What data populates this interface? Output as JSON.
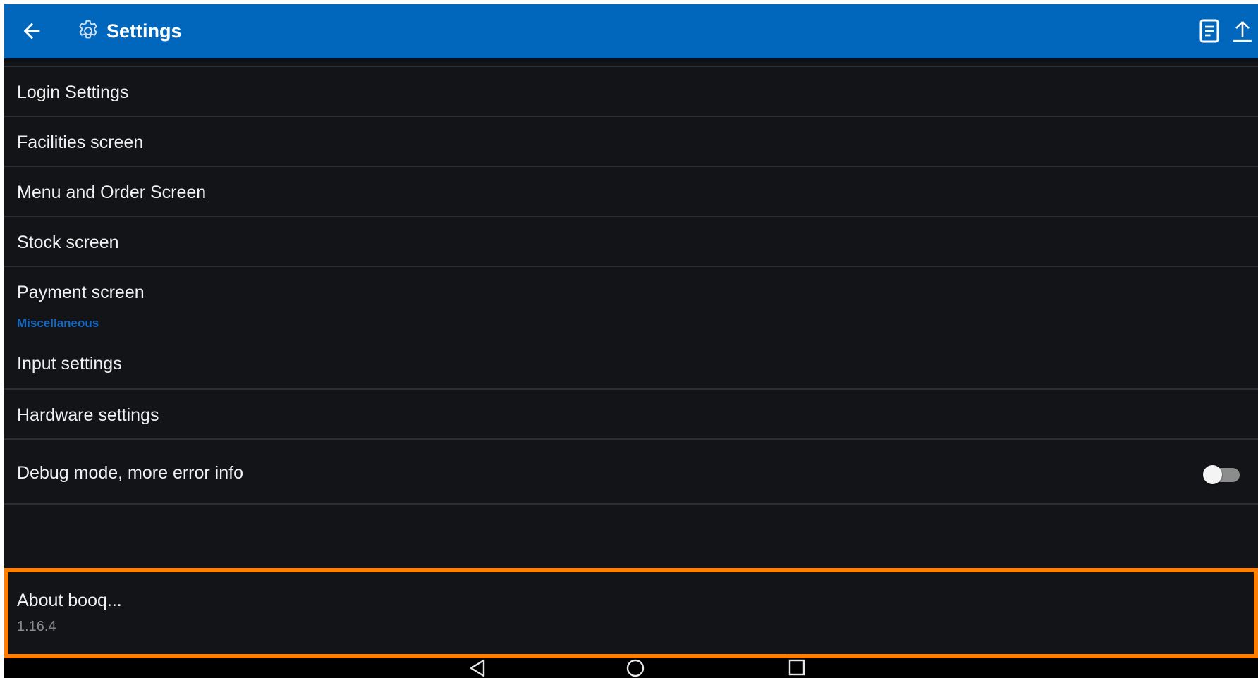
{
  "appbar": {
    "title": "Settings",
    "color": "#0167bd"
  },
  "icons": {
    "back": "arrow-left",
    "settings": "gear",
    "document": "document",
    "upload": "upload-arrow"
  },
  "items": [
    {
      "label": "Login Settings"
    },
    {
      "label": "Facilities screen"
    },
    {
      "label": "Menu and Order Screen"
    },
    {
      "label": "Stock screen"
    },
    {
      "label": "Payment screen"
    }
  ],
  "miscellaneous": {
    "header": "Miscellaneous",
    "items": [
      {
        "label": "Input settings"
      },
      {
        "label": "Hardware settings"
      }
    ],
    "debug": {
      "label": "Debug mode, more error info",
      "enabled": false
    }
  },
  "about": {
    "label": "About booq...",
    "version": "1.16.4",
    "highlight_color": "#ff7f00"
  },
  "navbar": {
    "buttons": [
      "back-triangle",
      "home-circle",
      "recents-square"
    ]
  }
}
